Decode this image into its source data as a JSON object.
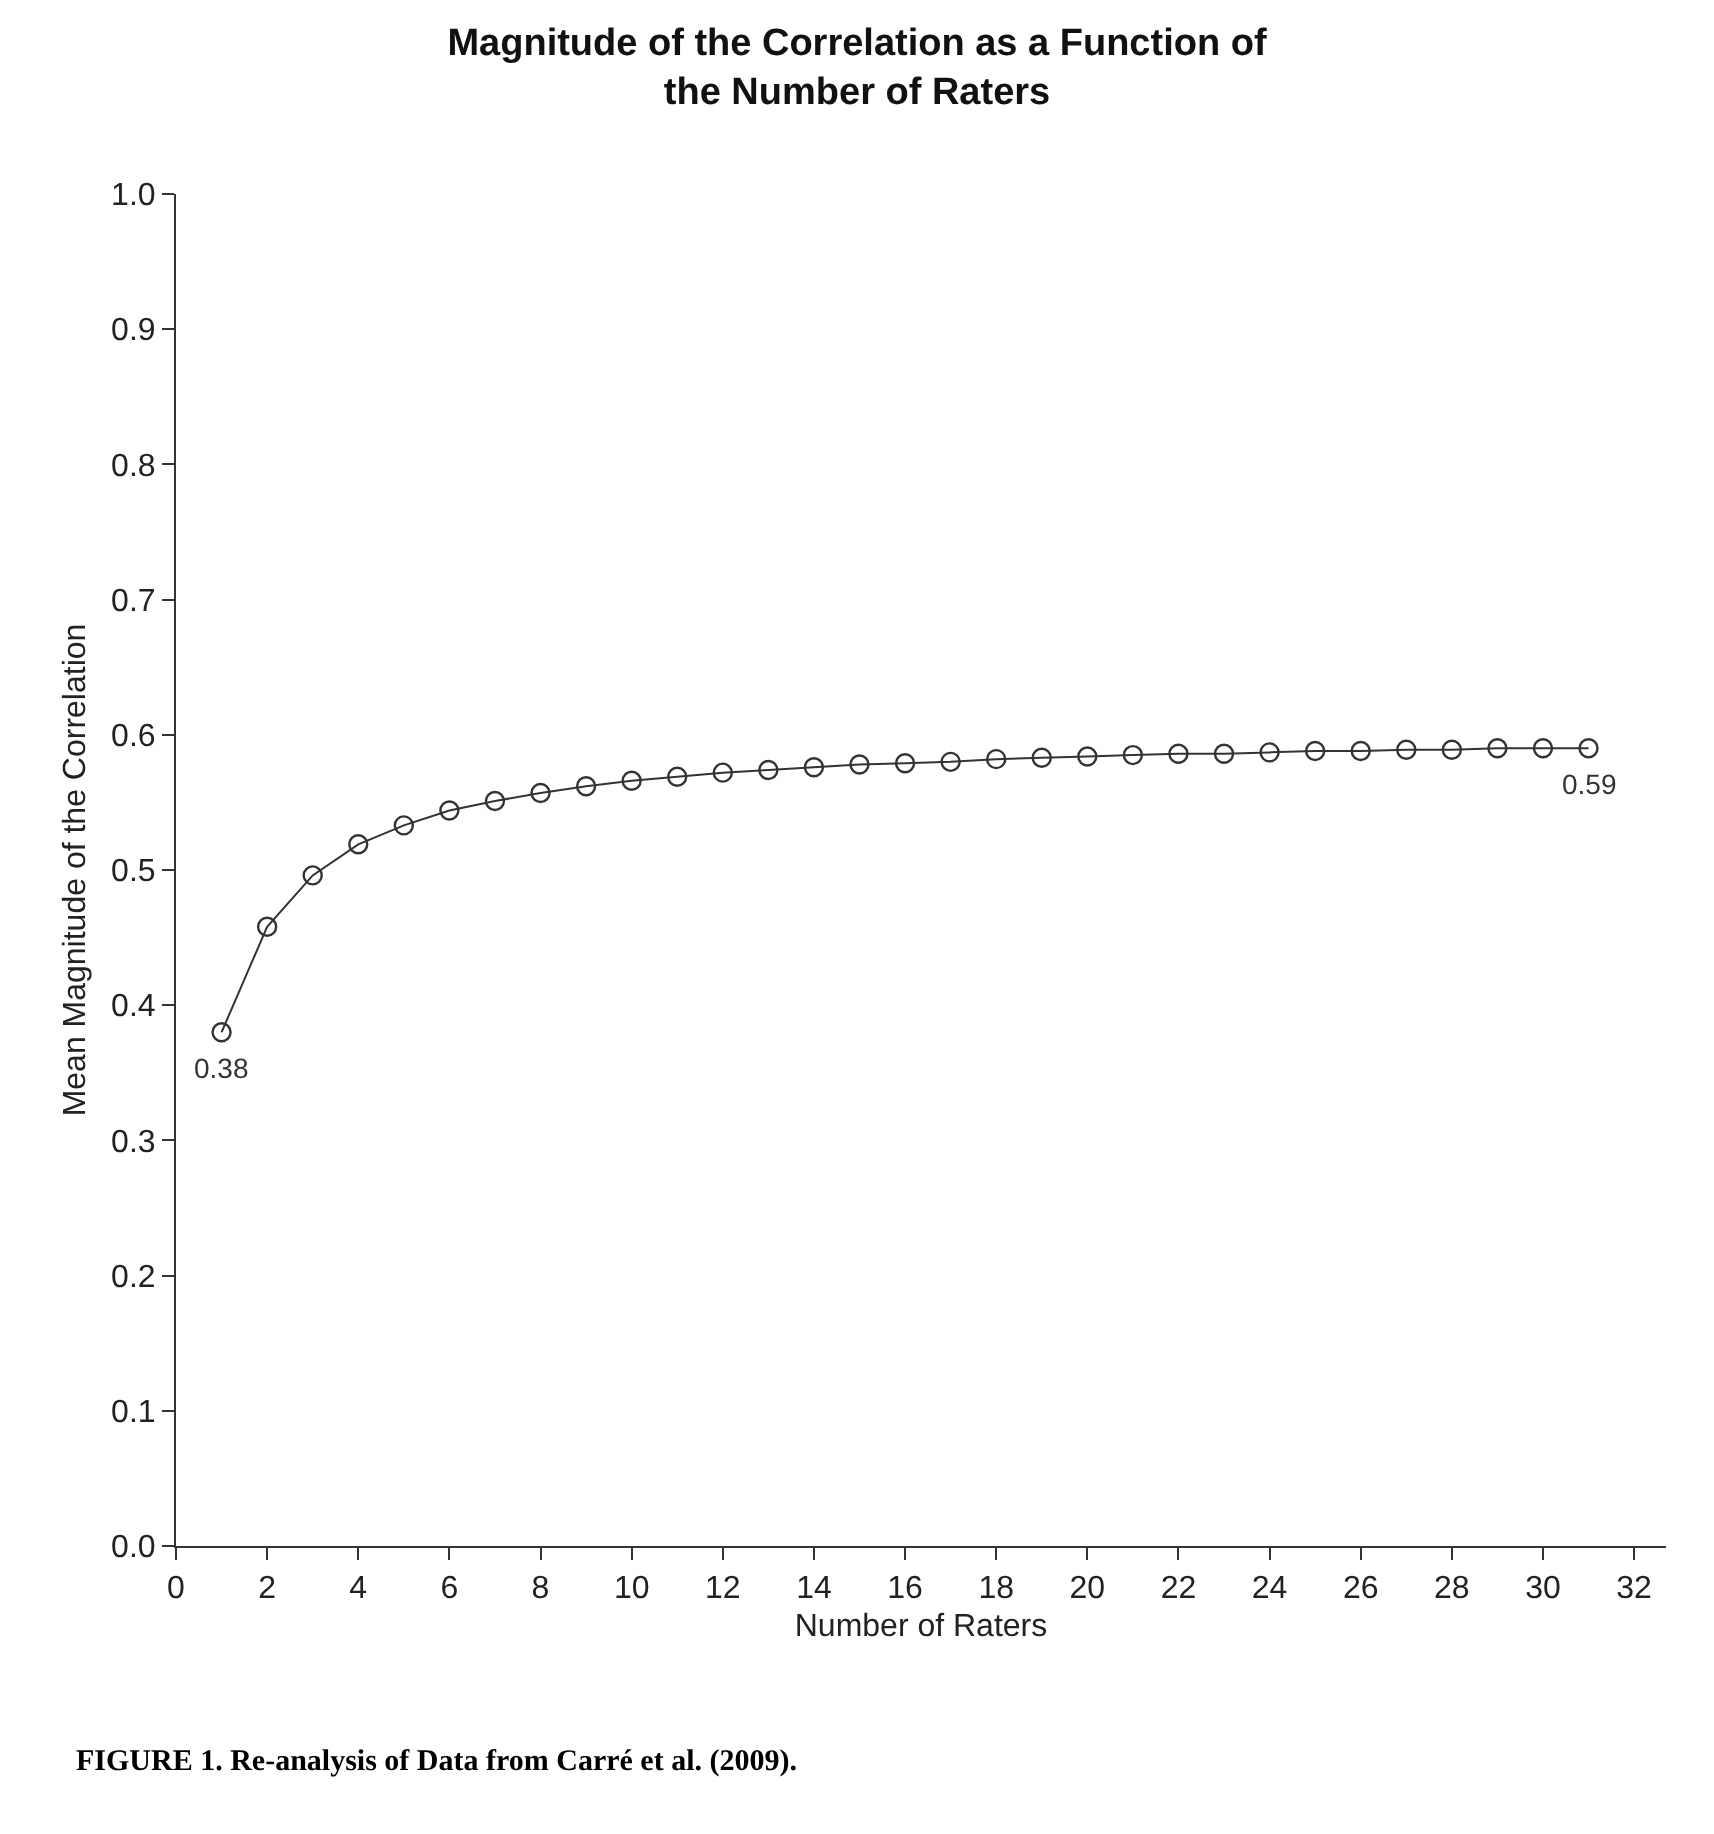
{
  "chart_data": {
    "type": "line",
    "title": "Magnitude of the Correlation as a Function of\nthe Number of Raters",
    "xlabel": "Number of Raters",
    "ylabel": "Mean Magnitude of the Correlation",
    "x": [
      1,
      2,
      3,
      4,
      5,
      6,
      7,
      8,
      9,
      10,
      11,
      12,
      13,
      14,
      15,
      16,
      17,
      18,
      19,
      20,
      21,
      22,
      23,
      24,
      25,
      26,
      27,
      28,
      29,
      30,
      31
    ],
    "series": [
      {
        "color": "#333333",
        "values": [
          0.38,
          0.458,
          0.496,
          0.519,
          0.533,
          0.544,
          0.551,
          0.557,
          0.562,
          0.566,
          0.569,
          0.572,
          0.574,
          0.576,
          0.578,
          0.579,
          0.58,
          0.582,
          0.583,
          0.584,
          0.585,
          0.586,
          0.586,
          0.587,
          0.588,
          0.588,
          0.589,
          0.589,
          0.59,
          0.59,
          0.59
        ]
      }
    ],
    "xlim": [
      0,
      32.7
    ],
    "xticks": [
      0,
      2,
      4,
      6,
      8,
      10,
      12,
      14,
      16,
      18,
      20,
      22,
      24,
      26,
      28,
      30,
      32
    ],
    "ylim": [
      0,
      1.0
    ],
    "yticks": [
      {
        "value": 0,
        "label": "0.0"
      },
      0.1,
      0.2,
      0.3,
      0.4,
      0.5,
      0.6,
      0.7,
      0.8,
      0.9,
      {
        "value": 1,
        "label": "1.0"
      }
    ],
    "marker": "circle",
    "line_style": "solid",
    "annotations": [
      {
        "text": "0.38",
        "x": 1,
        "y": 0.38
      },
      {
        "text": "0.59",
        "x": 31,
        "y": 0.59
      },
      "FIGURE 1. Re-analysis of Data from Carré et al. (2009)."
    ]
  }
}
